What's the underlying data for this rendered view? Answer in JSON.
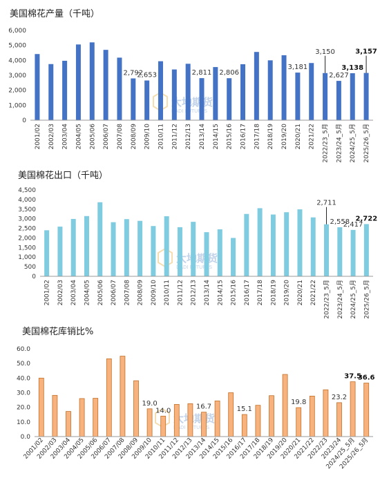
{
  "watermark": {
    "cn": "大地期货",
    "en": "DADI FUTURES",
    "logo": "dadi-logo-icon"
  },
  "chart_data": [
    {
      "type": "bar",
      "title": "美国棉花产量（千吨）",
      "color": "#4472C4",
      "ylim": [
        0,
        6000
      ],
      "yticks": [
        "0",
        "1,000",
        "2,000",
        "3,000",
        "4,000",
        "5,000",
        "6,000"
      ],
      "grid": false,
      "categories": [
        "2001/02",
        "2002/03",
        "2003/04",
        "2004/05",
        "2005/06",
        "2006/07",
        "2007/08",
        "2008/09",
        "2009/10",
        "2010/11",
        "2011/12",
        "2012/13",
        "2013/14",
        "2014/15",
        "2015/16",
        "2016/17",
        "2017/18",
        "2018/19",
        "2019/20",
        "2020/21",
        "2021/22",
        "2022/23_5月",
        "2023/24_5月",
        "2024/25_5月",
        "2025/26_5月"
      ],
      "values": [
        4420,
        3750,
        3970,
        5060,
        5200,
        4700,
        4180,
        2792,
        2653,
        3940,
        3390,
        3770,
        2811,
        3550,
        2806,
        3740,
        4560,
        4000,
        4340,
        3181,
        3820,
        3150,
        2627,
        3138,
        3157
      ],
      "labels": [
        {
          "i": 7,
          "text": "2,792",
          "bold": false
        },
        {
          "i": 8,
          "text": "2,653",
          "bold": false
        },
        {
          "i": 12,
          "text": "2,811",
          "bold": false
        },
        {
          "i": 14,
          "text": "2,806",
          "bold": false
        },
        {
          "i": 19,
          "text": "3,181",
          "bold": false
        },
        {
          "i": 21,
          "text": "3,150",
          "bold": false,
          "leader": true
        },
        {
          "i": 22,
          "text": "2,627",
          "bold": false
        },
        {
          "i": 23,
          "text": "3,138",
          "bold": true
        },
        {
          "i": 24,
          "text": "3,157",
          "bold": true,
          "leader": true
        }
      ]
    },
    {
      "type": "bar",
      "title": "美国棉花出口（千吨）",
      "color": "#7FCCE0",
      "ylim": [
        0,
        4500
      ],
      "yticks": [
        "0",
        "500",
        "1,000",
        "1,500",
        "2,000",
        "2,500",
        "3,000",
        "3,500",
        "4,000",
        "4,500"
      ],
      "grid": false,
      "categories": [
        "2001/02",
        "2002/03",
        "2003/04",
        "2004/05",
        "2005/06",
        "2006/07",
        "2007/08",
        "2008/09",
        "2009/10",
        "2010/11",
        "2011/12",
        "2012/13",
        "2013/14",
        "2014/15",
        "2015/16",
        "2016/17",
        "2017/18",
        "2018/19",
        "2019/20",
        "2020/21",
        "2021/22",
        "2022/23_5月",
        "2023/24_5月",
        "2024/25_5月",
        "2025/26_5月"
      ],
      "values": [
        2400,
        2590,
        2990,
        3140,
        3860,
        2820,
        2980,
        2890,
        2620,
        3130,
        2560,
        2840,
        2300,
        2450,
        2000,
        3250,
        3550,
        3220,
        3340,
        3490,
        3070,
        2711,
        2558,
        2417,
        2722
      ],
      "labels": [
        {
          "i": 21,
          "text": "2,711",
          "bold": false,
          "leader": true
        },
        {
          "i": 22,
          "text": "2,558",
          "bold": false
        },
        {
          "i": 23,
          "text": "2,417",
          "bold": false
        },
        {
          "i": 24,
          "text": "2,722",
          "bold": true
        }
      ]
    },
    {
      "type": "bar",
      "title": "美国棉花库销比%",
      "color": "#F7B27E",
      "edge": "#C07028",
      "ylim": [
        0,
        60
      ],
      "yticks": [
        "0.0",
        "10.0",
        "20.0",
        "30.0",
        "40.0",
        "50.0",
        "60.0"
      ],
      "grid": false,
      "categories": [
        "2001/02",
        "2002/03",
        "2003/04",
        "2004/05",
        "2005/06",
        "2006/07",
        "2007/08",
        "2008/09",
        "2009/10",
        "2010/11",
        "2011/12",
        "2012/13",
        "2013/14",
        "2014/15",
        "2015/16",
        "2016/17",
        "2017/18",
        "2018/19",
        "2019/20",
        "2020/21",
        "2021/22",
        "2022/23",
        "2023/24",
        "2024/25_5月",
        "2025/26_5月"
      ],
      "values": [
        40.0,
        28.2,
        17.2,
        26.0,
        26.2,
        53.2,
        55.0,
        38.2,
        19.0,
        14.0,
        22.0,
        22.5,
        16.7,
        24.4,
        30.0,
        15.1,
        21.4,
        28.0,
        42.5,
        19.8,
        27.7,
        32.0,
        23.2,
        37.5,
        36.6
      ],
      "labels": [
        {
          "i": 8,
          "text": "19.0",
          "bold": false
        },
        {
          "i": 9,
          "text": "14.0",
          "bold": false
        },
        {
          "i": 12,
          "text": "16.7",
          "bold": false
        },
        {
          "i": 15,
          "text": "15.1",
          "bold": false
        },
        {
          "i": 19,
          "text": "19.8",
          "bold": false
        },
        {
          "i": 22,
          "text": "23.2",
          "bold": false
        },
        {
          "i": 23,
          "text": "37.5",
          "bold": true
        },
        {
          "i": 24,
          "text": "36.6",
          "bold": true
        }
      ]
    }
  ]
}
